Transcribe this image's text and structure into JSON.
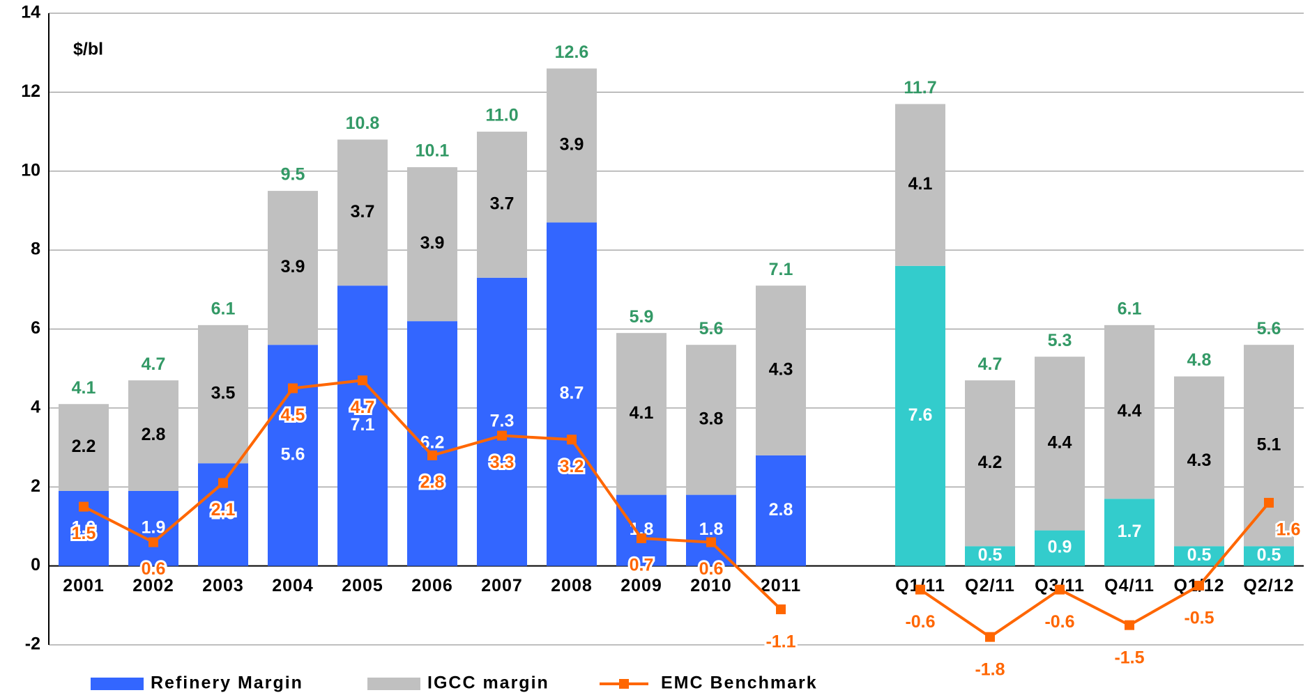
{
  "chart_data": {
    "type": "bar_line",
    "unit_label": "$/bl",
    "categories": [
      "2001",
      "2002",
      "2003",
      "2004",
      "2005",
      "2006",
      "2007",
      "2008",
      "2009",
      "2010",
      "2011",
      null,
      "Q1/11",
      "Q2/11",
      "Q3/11",
      "Q4/11",
      "Q1/12",
      "Q2/12"
    ],
    "series": [
      {
        "name": "Refinery Margin",
        "kind": "bar",
        "color": "#3366ff",
        "colors": [
          "#3366ff",
          "#3366ff",
          "#3366ff",
          "#3366ff",
          "#3366ff",
          "#3366ff",
          "#3366ff",
          "#3366ff",
          "#3366ff",
          "#3366ff",
          "#3366ff",
          null,
          "#33cccc",
          "#33cccc",
          "#33cccc",
          "#33cccc",
          "#33cccc",
          "#33cccc"
        ],
        "label_color": "#ffffff",
        "values": [
          1.9,
          1.9,
          2.6,
          5.6,
          7.1,
          6.2,
          7.3,
          8.7,
          1.8,
          1.8,
          2.8,
          null,
          7.6,
          0.5,
          0.9,
          1.7,
          0.5,
          0.5
        ]
      },
      {
        "name": "IGCC margin",
        "kind": "bar",
        "color": "#c0c0c0",
        "label_color": "#000000",
        "values": [
          2.2,
          2.8,
          3.5,
          3.9,
          3.7,
          3.9,
          3.7,
          3.9,
          4.1,
          3.8,
          4.3,
          null,
          4.1,
          4.2,
          4.4,
          4.4,
          4.3,
          5.1
        ]
      },
      {
        "name": "EMC Benchmark",
        "kind": "line",
        "color": "#ff6600",
        "label_color": "#ff6600",
        "values": [
          1.5,
          0.6,
          2.1,
          4.5,
          4.7,
          2.8,
          3.3,
          3.2,
          0.7,
          0.6,
          -1.1,
          null,
          -0.6,
          -1.8,
          -0.6,
          -1.5,
          -0.5,
          1.6
        ]
      }
    ],
    "totals": {
      "color": "#339966",
      "values": [
        4.1,
        4.7,
        6.1,
        9.5,
        10.8,
        10.1,
        11,
        12.6,
        5.9,
        5.6,
        7.1,
        null,
        11.7,
        4.7,
        5.3,
        6.1,
        4.8,
        5.6
      ],
      "value_labels": [
        "4.1",
        "4.7",
        "6.1",
        "9.5",
        "10.8",
        "10.1",
        "11.0",
        "12.6",
        "5.9",
        "5.6",
        "7.1",
        null,
        "11.7",
        "4.7",
        "5.3",
        "6.1",
        "4.8",
        "5.6"
      ]
    },
    "ylim": [
      -2,
      14
    ],
    "yticks": [
      -2,
      0,
      2,
      4,
      6,
      8,
      10,
      12,
      14
    ],
    "grid": true
  }
}
